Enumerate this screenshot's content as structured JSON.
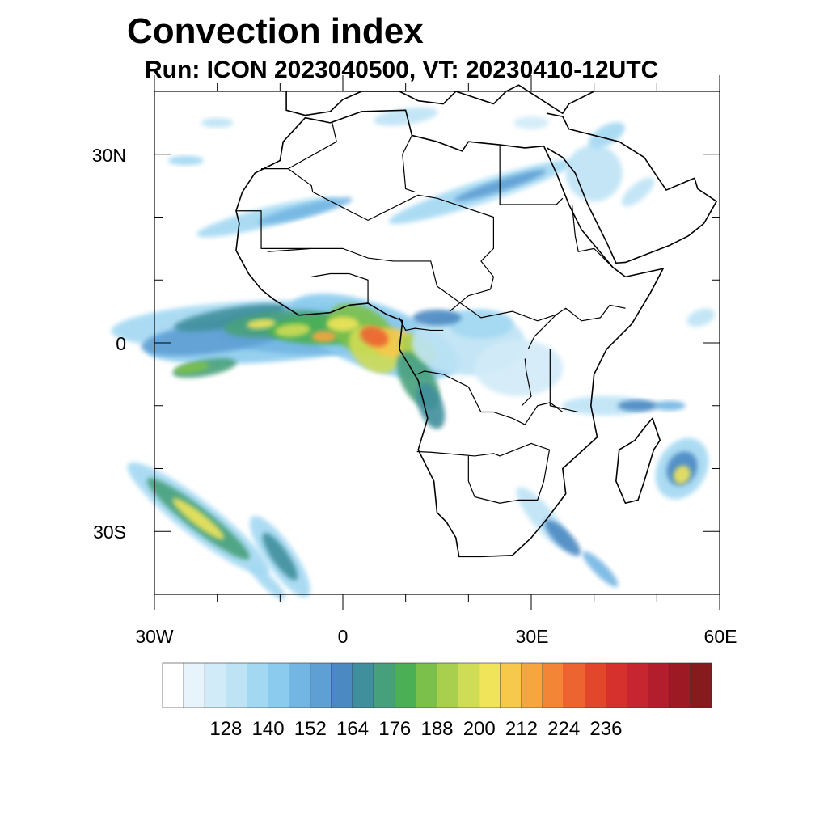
{
  "title": "Convection index",
  "subtitle": "Run: ICON 2023040500,  VT: 20230410-12UTC",
  "lat_labels": [
    "30N",
    "0",
    "30S"
  ],
  "lon_labels": [
    "30W",
    "0",
    "30E",
    "60E"
  ],
  "map_extent": {
    "lon_min": -30,
    "lon_max": 60,
    "lat_min": -40,
    "lat_max": 40
  },
  "colorbar": {
    "colors": [
      "#ffffff",
      "#e8f4fb",
      "#d2ebf8",
      "#bde3f5",
      "#a3d8f2",
      "#8bcbee",
      "#73b6e3",
      "#5e9fd4",
      "#4b89c2",
      "#3f8f9c",
      "#46a07c",
      "#4bb055",
      "#7cc04c",
      "#a8cf4d",
      "#cfdc55",
      "#f0e45a",
      "#f6c94c",
      "#f6a63f",
      "#f28536",
      "#ec6430",
      "#e2462b",
      "#d6312c",
      "#c72530",
      "#b21e2b",
      "#9d1a25",
      "#861b1e"
    ],
    "tick_labels": [
      "128",
      "140",
      "152",
      "164",
      "176",
      "188",
      "200",
      "212",
      "224",
      "236"
    ]
  }
}
